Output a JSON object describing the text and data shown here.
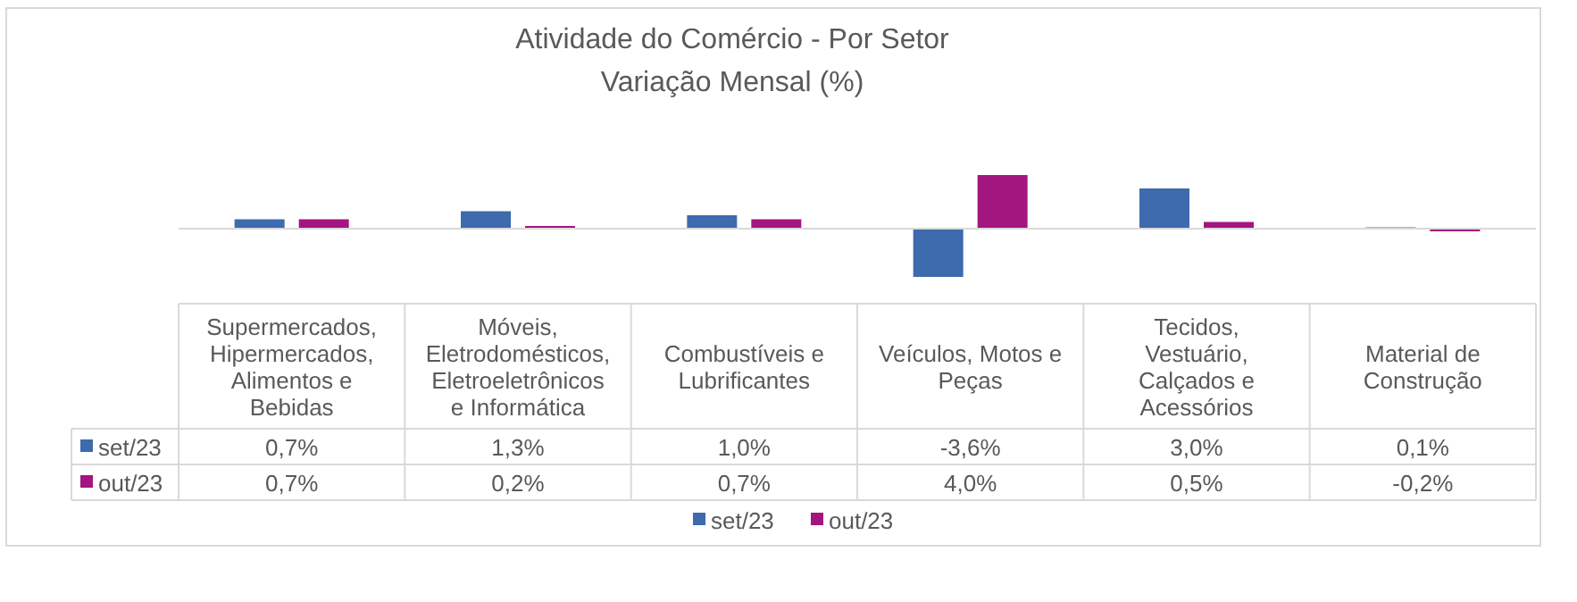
{
  "chart_data": {
    "type": "bar",
    "title": "Atividade do Comércio - Por Setor",
    "subtitle": "Variação Mensal (%)",
    "categories": [
      "Supermercados, Hipermercados, Alimentos e Bebidas",
      "Móveis, Eletrodomésticos, Eletroeletrônicos e Informática",
      "Combustíveis e Lubrificantes",
      "Veículos, Motos e Peças",
      "Tecidos, Vestuário, Calçados e Acessórios",
      "Material de Construção"
    ],
    "series": [
      {
        "name": "set/23",
        "color": "#3e6aae",
        "values": [
          0.7,
          1.3,
          1.0,
          -3.6,
          3.0,
          0.1
        ],
        "value_labels": [
          "0,7%",
          "1,3%",
          "1,0%",
          "-3,6%",
          "3,0%",
          "0,1%"
        ]
      },
      {
        "name": "out/23",
        "color": "#a3157f",
        "values": [
          0.7,
          0.2,
          0.7,
          4.0,
          0.5,
          -0.2
        ],
        "value_labels": [
          "0,7%",
          "0,2%",
          "0,7%",
          "4,0%",
          "0,5%",
          "-0,2%"
        ]
      }
    ],
    "legend": "bottom"
  }
}
